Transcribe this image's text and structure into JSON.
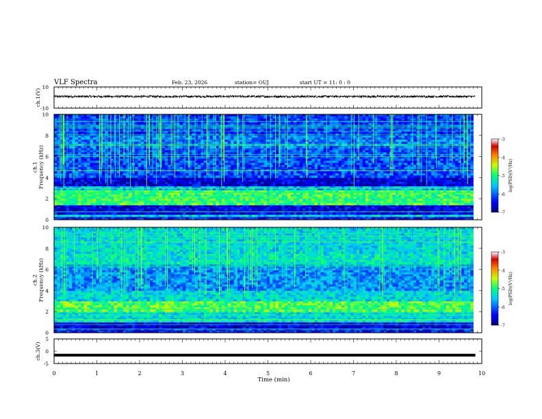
{
  "header": {
    "title": "VLF Spectra",
    "date": "Feb. 23, 2026",
    "station": "station= OUJ",
    "start": "start  UT =   11: 0  : 0"
  },
  "chart_data": [
    {
      "type": "line",
      "id": "ch1-waveform",
      "ylabel": "ch.1(V)",
      "ylim": [
        -10,
        10
      ],
      "yticks": [
        10,
        -10
      ],
      "xlim": [
        0,
        10
      ],
      "series": [
        {
          "approx_level": 1,
          "amplitude_range": [
            0,
            2
          ],
          "color": "#000000"
        }
      ]
    },
    {
      "type": "heatmap",
      "id": "ch1-spectrogram",
      "ylabel": "ch.1\nFrequency (kHz)",
      "ylim": [
        0,
        10
      ],
      "yticks": [
        0,
        2,
        4,
        6,
        8,
        10
      ],
      "xlim": [
        0,
        10
      ],
      "data_end_min": 9.8,
      "colorbar": {
        "min": -7,
        "max": -3,
        "ticks": [
          -3,
          -4,
          -5,
          -6,
          -7
        ],
        "label": "log(PSD)(V²/Hz)"
      },
      "bands": [
        {
          "f": [
            0,
            0.3
          ],
          "level": -6.3
        },
        {
          "f": [
            0.3,
            0.5
          ],
          "level": -5.4
        },
        {
          "f": [
            0.5,
            0.9
          ],
          "level": -6.5
        },
        {
          "f": [
            0.9,
            1.4
          ],
          "level": -6.6
        },
        {
          "f": [
            1.4,
            2.8
          ],
          "level": -4.9
        },
        {
          "f": [
            2.8,
            3.2
          ],
          "level": -5.6
        },
        {
          "f": [
            3.2,
            4.0
          ],
          "level": -6.6
        },
        {
          "f": [
            4.0,
            6.8
          ],
          "level": -6.1
        },
        {
          "f": [
            6.8,
            8.0
          ],
          "level": -5.9
        },
        {
          "f": [
            8.0,
            10.0
          ],
          "level": -6.2
        }
      ]
    },
    {
      "type": "heatmap",
      "id": "ch2-spectrogram",
      "ylabel": "ch.2\nFrequency (kHz)",
      "ylim": [
        0,
        10
      ],
      "yticks": [
        0,
        2,
        4,
        6,
        8,
        10
      ],
      "xlim": [
        0,
        10
      ],
      "data_end_min": 9.8,
      "colorbar": {
        "min": -7,
        "max": -3,
        "ticks": [
          -3,
          -4,
          -5,
          -6,
          -7
        ],
        "label": "log(PSD)(V²/Hz)"
      },
      "bands": [
        {
          "f": [
            0,
            0.4
          ],
          "level": -6.3
        },
        {
          "f": [
            0.4,
            1.0
          ],
          "level": -6.6
        },
        {
          "f": [
            1.0,
            2.0
          ],
          "level": -5.4
        },
        {
          "f": [
            2.0,
            3.0
          ],
          "level": -4.8
        },
        {
          "f": [
            3.0,
            4.0
          ],
          "level": -5.4
        },
        {
          "f": [
            4.0,
            6.5
          ],
          "level": -5.8
        },
        {
          "f": [
            6.5,
            7.5
          ],
          "level": -5.3
        },
        {
          "f": [
            7.5,
            10.0
          ],
          "level": -5.4
        }
      ]
    },
    {
      "type": "line",
      "id": "ch3-waveform",
      "ylabel": "ch.3(V)",
      "ylim": [
        -5,
        5
      ],
      "yticks": [
        5,
        0,
        -5
      ],
      "xlim": [
        0,
        10
      ],
      "series": [
        {
          "approx_level": -1.6,
          "color": "#000000"
        }
      ]
    }
  ],
  "xaxis": {
    "label": "Time  (min)",
    "ticks": [
      "0",
      "1",
      "2",
      "3",
      "4",
      "5",
      "6",
      "7",
      "8",
      "9",
      "10"
    ]
  },
  "colors": {
    "colormap": [
      "#000080",
      "#0000ff",
      "#00c8ff",
      "#00ff80",
      "#c8ff00",
      "#ff8000",
      "#d00000",
      "#ffffff"
    ]
  }
}
